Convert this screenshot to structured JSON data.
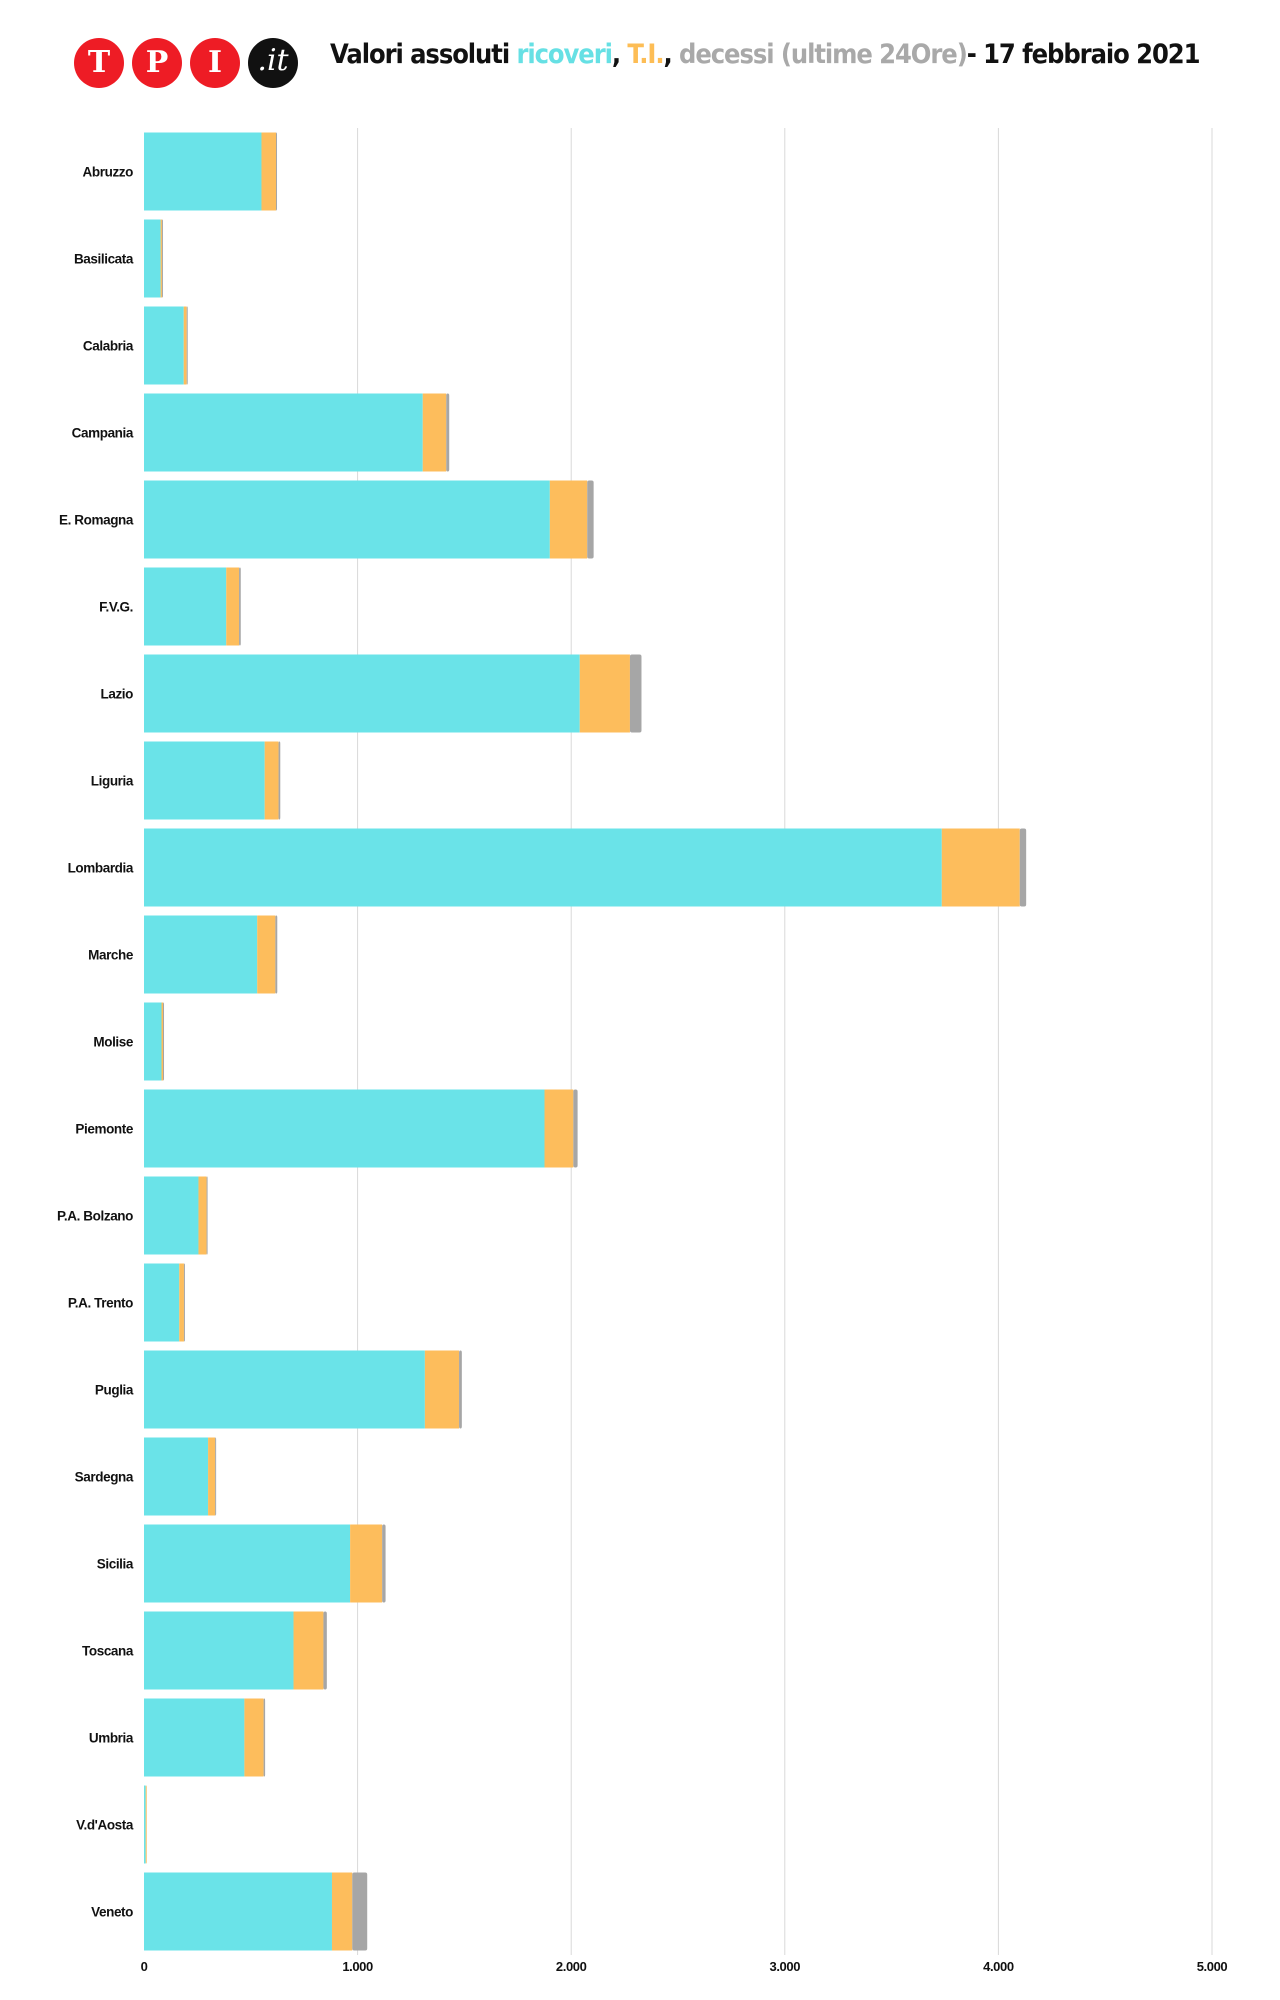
{
  "header": {
    "logo_letters": [
      "T",
      "P",
      "I"
    ],
    "logo_suffix": ".it",
    "title_part1": "Valori assoluti ",
    "title_ricoveri": "ricoveri",
    "title_sep1": ", ",
    "title_ti": "T.I.",
    "title_sep2": ", ",
    "title_decessi": "decessi (ultime 24Ore)",
    "title_date": "- 17 febbraio 2021"
  },
  "colors": {
    "ricoveri": "#6ae3e8",
    "terapia_intensiva": "#fdbd5c",
    "decessi": "#a6a6a6",
    "grid": "#d9d9d9",
    "logo_red": "#ee1c25"
  },
  "chart_data": {
    "type": "bar",
    "orientation": "horizontal",
    "stacked": true,
    "title": "Valori assoluti ricoveri, T.I., decessi (ultime 24Ore)- 17 febbraio 2021",
    "categories": [
      "Abruzzo",
      "Basilicata",
      "Calabria",
      "Campania",
      "E. Romagna",
      "F.V.G.",
      "Lazio",
      "Liguria",
      "Lombardia",
      "Marche",
      "Molise",
      "Piemonte",
      "P.A. Bolzano",
      "P.A. Trento",
      "Puglia",
      "Sardegna",
      "Sicilia",
      "Toscana",
      "Umbria",
      "V.d'Aosta",
      "Veneto"
    ],
    "series": [
      {
        "name": "ricoveri",
        "values": [
          550,
          78,
          186,
          1305,
          1900,
          385,
          2040,
          565,
          3735,
          530,
          82,
          1875,
          255,
          165,
          1315,
          300,
          965,
          700,
          470,
          8,
          880
        ]
      },
      {
        "name": "T.I.",
        "values": [
          68,
          6,
          14,
          110,
          175,
          60,
          235,
          65,
          365,
          85,
          7,
          135,
          38,
          22,
          160,
          33,
          150,
          140,
          90,
          2,
          95
        ]
      },
      {
        "name": "decessi",
        "values": [
          4,
          1,
          3,
          14,
          30,
          8,
          54,
          8,
          30,
          9,
          1,
          20,
          2,
          2,
          13,
          4,
          16,
          16,
          7,
          0,
          70
        ]
      }
    ],
    "xlim": [
      0,
      5000
    ],
    "xticks": [
      0,
      1000,
      2000,
      3000,
      4000,
      5000
    ],
    "xtick_labels": [
      "0",
      "1.000",
      "2.000",
      "3.000",
      "4.000",
      "5.000"
    ],
    "grid": true,
    "legend": "none (colors explained in title)"
  }
}
